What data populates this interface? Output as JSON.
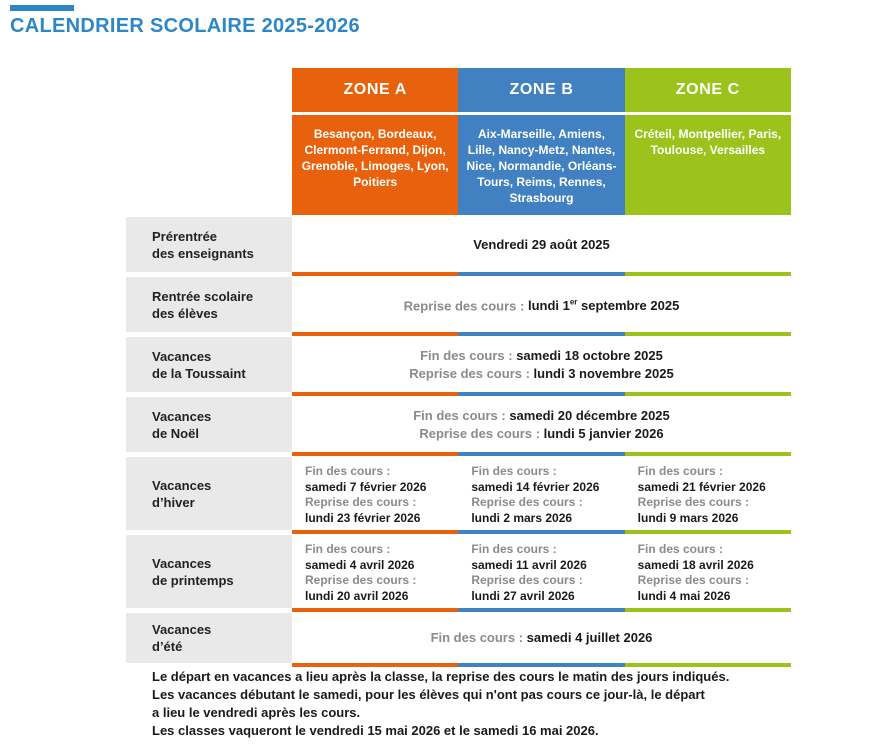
{
  "page": {
    "title": "CALENDRIER SCOLAIRE 2025-2026"
  },
  "colors": {
    "accent_blue": "#2E87C5",
    "zone_a_orange": "#E8620D",
    "zone_b_blue": "#4181C1",
    "zone_c_green": "#9BC31C",
    "label_bg_gray": "#E9E9E9",
    "muted_text": "#8B8B8B",
    "dark_text": "#1A1A1A"
  },
  "zones": [
    {
      "name": "ZONE A",
      "cities": "Besançon, Bordeaux, Clermont-Ferrand, Dijon, Grenoble, Limoges, Lyon, Poitiers"
    },
    {
      "name": "ZONE B",
      "cities": "Aix-Marseille, Amiens, Lille, Nancy-Metz, Nantes, Nice, Normandie, Orléans-Tours, Reims, Rennes, Strasbourg"
    },
    {
      "name": "ZONE C",
      "cities": "Créteil, Montpellier, Paris, Toulouse, Versailles"
    }
  ],
  "labels": {
    "fin": "Fin des cours :",
    "reprise": "Reprise des cours :"
  },
  "rows": {
    "prerentree": {
      "label_line1": "Prérentrée",
      "label_line2": "des enseignants",
      "value": "Vendredi 29 août 2025"
    },
    "rentree": {
      "label_line1": "Rentrée scolaire",
      "label_line2": "des élèves",
      "value_before_sup": "lundi 1",
      "sup": "er",
      "value_after_sup": " septembre 2025"
    },
    "toussaint": {
      "label_line1": "Vacances",
      "label_line2": "de la Toussaint",
      "fin_value": "samedi 18 octobre 2025",
      "reprise_value": "lundi 3 novembre 2025"
    },
    "noel": {
      "label_line1": "Vacances",
      "label_line2": "de Noël",
      "fin_value": "samedi 20 décembre 2025",
      "reprise_value": "lundi 5 janvier 2026"
    },
    "hiver": {
      "label_line1": "Vacances",
      "label_line2": "d’hiver",
      "zones": [
        {
          "fin": "samedi 7 février 2026",
          "reprise": "lundi 23 février 2026"
        },
        {
          "fin": "samedi 14 février 2026",
          "reprise": "lundi 2 mars 2026"
        },
        {
          "fin": "samedi 21 février 2026",
          "reprise": "lundi 9 mars 2026"
        }
      ]
    },
    "printemps": {
      "label_line1": "Vacances",
      "label_line2": "de printemps",
      "zones": [
        {
          "fin": "samedi 4 avril 2026",
          "reprise": "lundi 20 avril 2026"
        },
        {
          "fin": "samedi 11 avril 2026",
          "reprise": "lundi 27 avril 2026"
        },
        {
          "fin": "samedi 18 avril 2026",
          "reprise": "lundi 4 mai 2026"
        }
      ]
    },
    "ete": {
      "label_line1": "Vacances",
      "label_line2": "d’été",
      "fin_value": "samedi 4 juillet 2026"
    }
  },
  "footer": {
    "line1": "Le départ en vacances a lieu après la classe, la reprise des cours le matin des jours indiqués.",
    "line2": "Les vacances débutant le samedi, pour les élèves qui n'ont pas cours ce jour-là, le départ",
    "line3": "a lieu le vendredi après les cours.",
    "line4": "Les classes vaqueront le vendredi 15 mai 2026 et le samedi 16 mai 2026."
  }
}
